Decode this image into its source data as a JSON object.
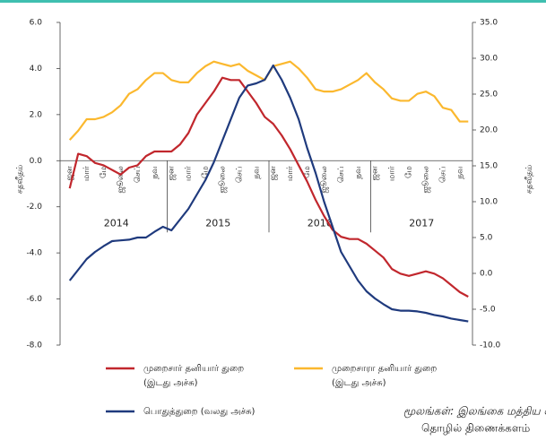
{
  "chart_data": {
    "type": "line",
    "ylabel": "சதவீதம்",
    "y2label": "சதவீதம்",
    "categories": [
      "ஜன",
      null,
      "மார்",
      null,
      "மே",
      null,
      "ஜூலை",
      null,
      "செப்",
      null,
      "நவ",
      null,
      "ஜன",
      null,
      "மார்",
      null,
      "மே",
      null,
      "ஜூலை",
      null,
      "செப்",
      null,
      "நவ",
      null,
      "ஜன",
      null,
      "மார்",
      null,
      "மே",
      null,
      "ஜூலை",
      null,
      "செப்",
      null,
      "நவ",
      null,
      "ஜன",
      null,
      "மார்",
      null,
      "மே",
      null,
      "ஜூலை",
      null,
      "செப்",
      null,
      "நவ",
      null
    ],
    "years": [
      "2014",
      "2015",
      "2016",
      "2017"
    ],
    "ylim": [
      -8,
      6
    ],
    "yticks": [
      {
        "value": 6,
        "label": "6.0"
      },
      {
        "value": 4,
        "label": "4.0"
      },
      {
        "value": 2,
        "label": "2.0"
      },
      {
        "value": 0,
        "label": "0.0"
      },
      {
        "value": -2,
        "label": "-2.0"
      },
      {
        "value": -4,
        "label": "-4.0"
      },
      {
        "value": -6,
        "label": "-6.0"
      },
      {
        "value": -8,
        "label": "-8.0"
      }
    ],
    "y2lim": [
      -10,
      35
    ],
    "y2ticks": [
      {
        "value": 35,
        "label": "35.0"
      },
      {
        "value": 30,
        "label": "30.0"
      },
      {
        "value": 25,
        "label": "25.0"
      },
      {
        "value": 20,
        "label": "20.0"
      },
      {
        "value": 15,
        "label": "15.0"
      },
      {
        "value": 10,
        "label": "10.0"
      },
      {
        "value": 5,
        "label": "5.0"
      },
      {
        "value": 0,
        "label": "0.0"
      },
      {
        "value": -5,
        "label": "-5.0"
      },
      {
        "value": -10,
        "label": "-10.0"
      }
    ],
    "series": [
      {
        "name": "முறைசார் தனியார் துறை",
        "note": "(இடது அச்சு)",
        "color": "#c1272d",
        "axis": "y",
        "values": [
          -1.2,
          0.3,
          0.2,
          -0.1,
          -0.2,
          -0.4,
          -0.6,
          -0.3,
          -0.2,
          0.2,
          0.4,
          0.4,
          0.4,
          0.7,
          1.2,
          2.0,
          2.5,
          3.0,
          3.6,
          3.5,
          3.5,
          3.0,
          2.5,
          1.9,
          1.6,
          1.1,
          0.5,
          -0.2,
          -0.9,
          -1.7,
          -2.4,
          -3.0,
          -3.3,
          -3.4,
          -3.4,
          -3.6,
          -3.9,
          -4.2,
          -4.7,
          -4.9,
          -5.0,
          -4.9,
          -4.8,
          -4.9,
          -5.1,
          -5.4,
          -5.7,
          -5.9
        ]
      },
      {
        "name": "முறைசாரா தனியார் துறை",
        "note": "(இடது அச்சு)",
        "color": "#fbb82e",
        "axis": "y",
        "values": [
          0.9,
          1.3,
          1.8,
          1.8,
          1.9,
          2.1,
          2.4,
          2.9,
          3.1,
          3.5,
          3.8,
          3.8,
          3.5,
          3.4,
          3.4,
          3.8,
          4.1,
          4.3,
          4.2,
          4.1,
          4.2,
          3.9,
          3.7,
          3.5,
          4.1,
          4.2,
          4.3,
          4.0,
          3.6,
          3.1,
          3.0,
          3.0,
          3.1,
          3.3,
          3.5,
          3.8,
          3.4,
          3.1,
          2.7,
          2.6,
          2.6,
          2.9,
          3.0,
          2.8,
          2.3,
          2.2,
          1.7,
          1.7
        ]
      },
      {
        "name": "பொதுத்துறை (வலது அச்சு)",
        "color": "#1f3a7d",
        "axis": "y2",
        "values": [
          -1.0,
          0.5,
          2.0,
          3.0,
          3.8,
          4.5,
          4.6,
          4.7,
          5.0,
          5.0,
          5.8,
          6.5,
          6.0,
          7.5,
          9.0,
          11.0,
          13.0,
          15.5,
          18.5,
          21.5,
          24.5,
          26.2,
          26.5,
          27.0,
          29.0,
          27.0,
          24.5,
          21.5,
          17.5,
          14.0,
          10.0,
          6.5,
          3.0,
          1.0,
          -1.0,
          -2.5,
          -3.5,
          -4.3,
          -5.0,
          -5.2,
          -5.2,
          -5.3,
          -5.5,
          -5.8,
          -6.0,
          -6.3,
          -6.5,
          -6.7
        ]
      }
    ],
    "source": [
      "மூலங்கள்: இலங்கை மத்திய வங்கி",
      "தொழில் திணைக்களம்"
    ]
  }
}
